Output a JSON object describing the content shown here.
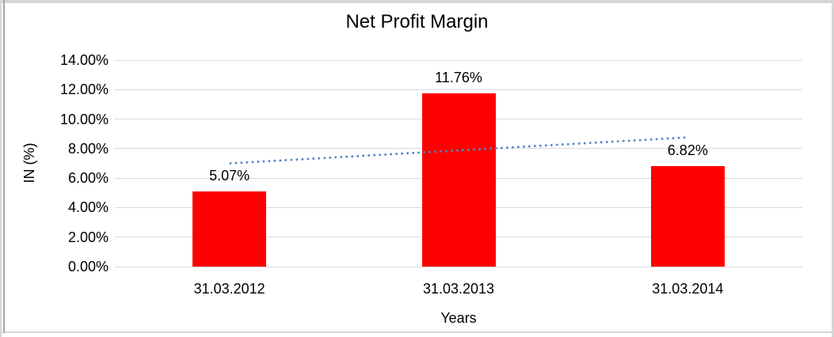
{
  "colors": {
    "bar": "#ff0000",
    "trendline": "#4f86c6",
    "gridline": "#d9d9d9",
    "frame": "#d6d6d6",
    "frame_inner_left": "#a6a6a6",
    "text": "#000000",
    "background": "#ffffff"
  },
  "chart_data": {
    "type": "bar",
    "title": "Net Profit Margin",
    "xlabel": "Years",
    "ylabel": "IN (%)",
    "categories": [
      "31.03.2012",
      "31.03.2013",
      "31.03.2014"
    ],
    "values": [
      5.07,
      11.76,
      6.82
    ],
    "data_labels": [
      "5.07%",
      "11.76%",
      "6.82%"
    ],
    "series": [
      {
        "name": "Net Profit Margin",
        "values": [
          5.07,
          11.76,
          6.82
        ]
      }
    ],
    "ylim": [
      0,
      14
    ],
    "yticks": [
      {
        "value": 0,
        "label": "0.00%"
      },
      {
        "value": 2,
        "label": "2.00%"
      },
      {
        "value": 4,
        "label": "4.00%"
      },
      {
        "value": 6,
        "label": "6.00%"
      },
      {
        "value": 8,
        "label": "8.00%"
      },
      {
        "value": 10,
        "label": "10.00%"
      },
      {
        "value": 12,
        "label": "12.00%"
      },
      {
        "value": 14,
        "label": "14.00%"
      }
    ],
    "grid": true,
    "legend": "none",
    "bar_color": "#ff0000",
    "trendline": {
      "type": "linear",
      "style": "dotted",
      "color": "#4f86c6",
      "start_value": 7.0,
      "end_value": 8.76
    }
  }
}
